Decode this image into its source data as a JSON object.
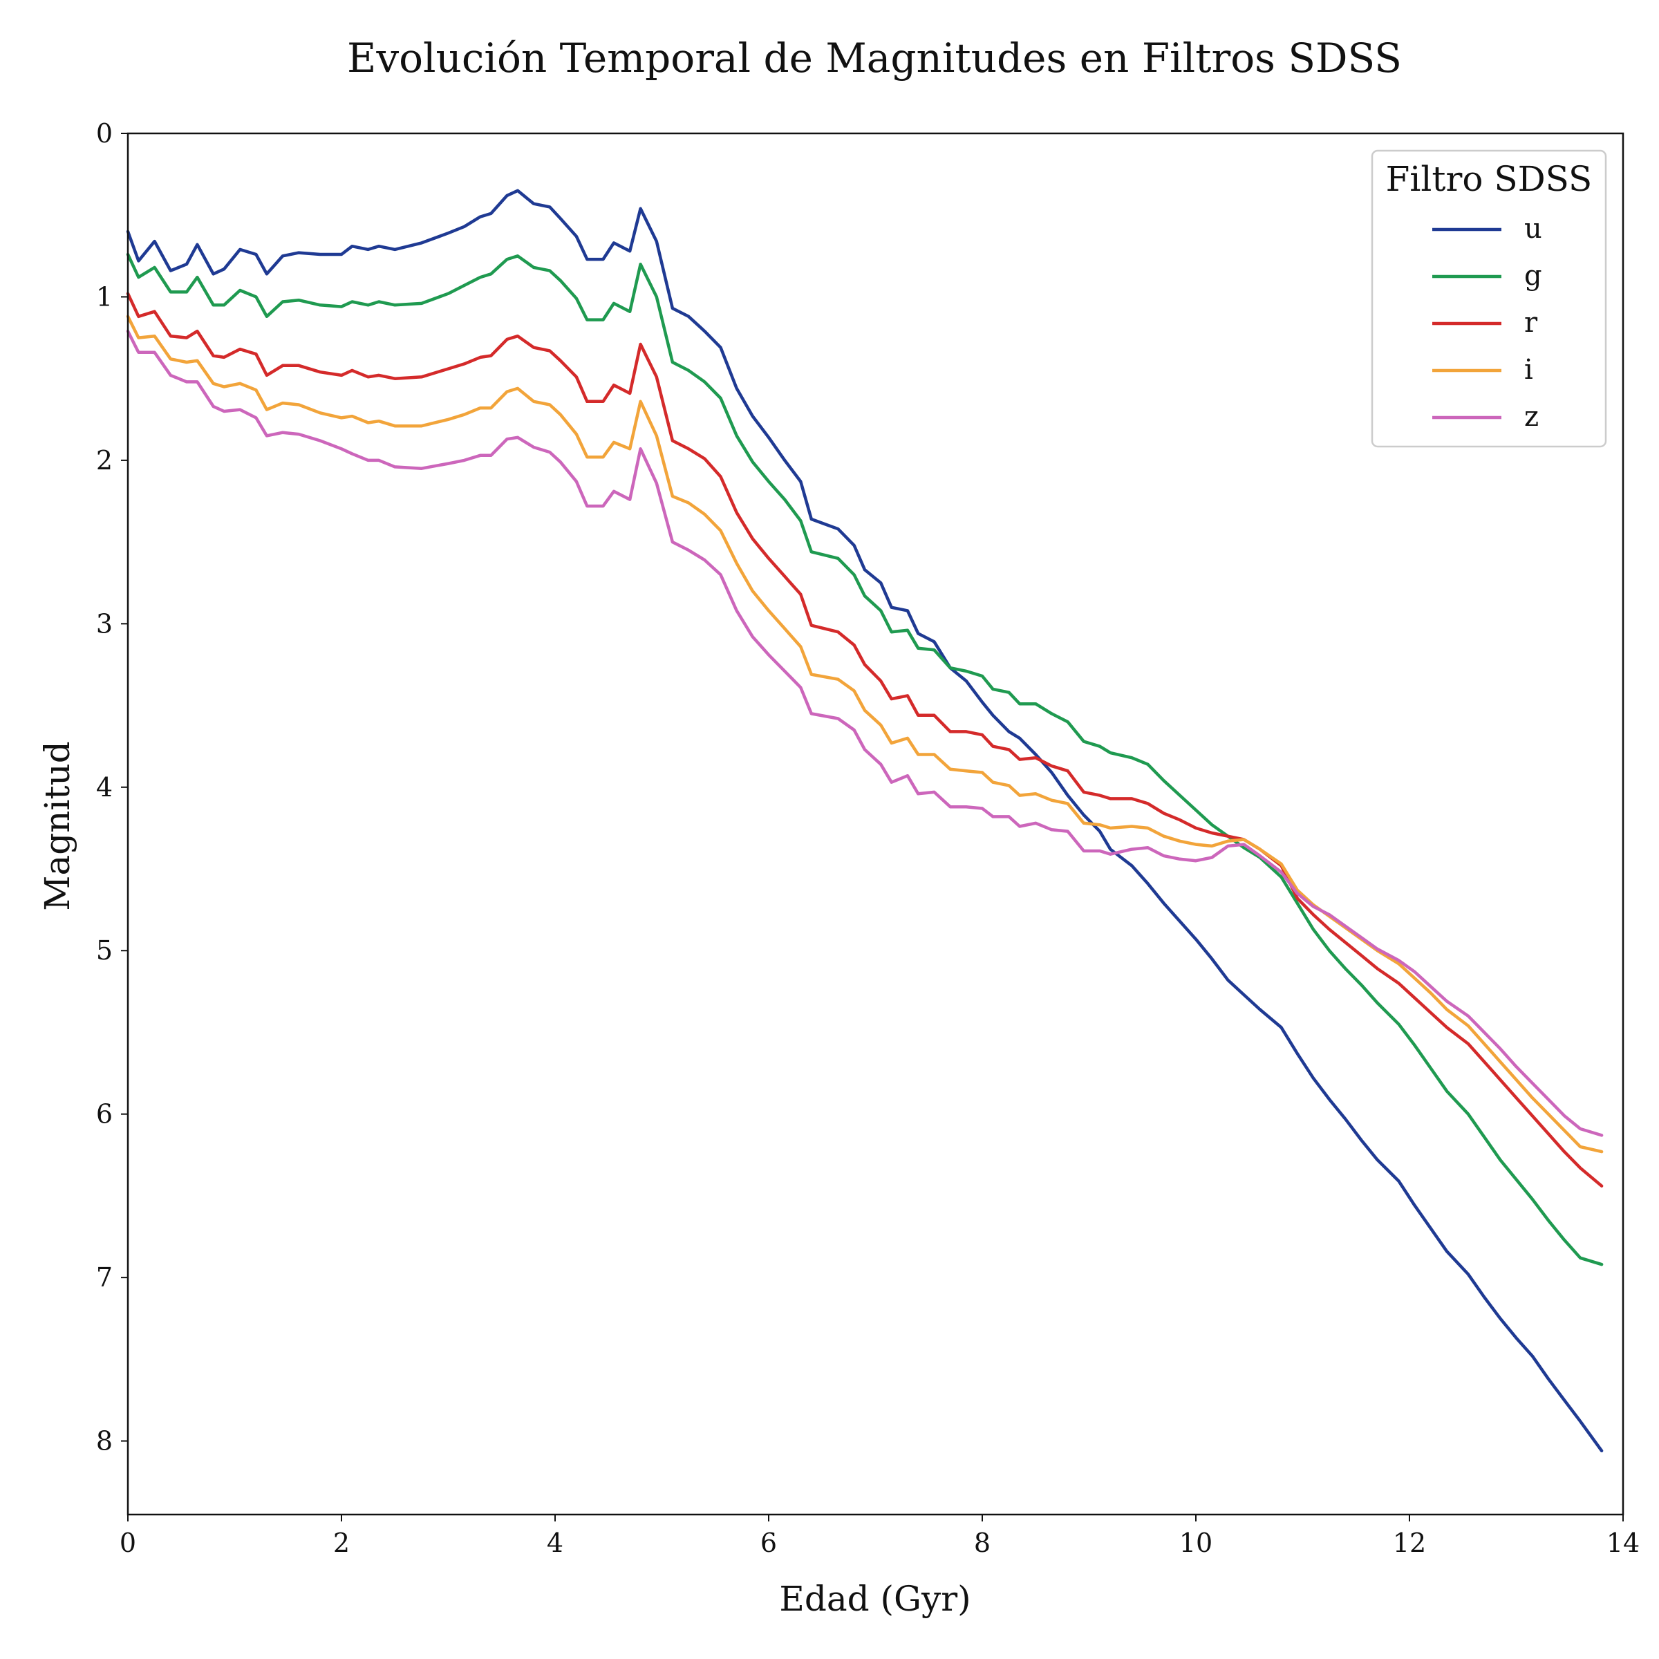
{
  "chart_data": {
    "type": "line",
    "title": "Evolución Temporal de Magnitudes en Filtros SDSS",
    "xlabel": "Edad (Gyr)",
    "ylabel": "Magnitud",
    "xlim": [
      0,
      14
    ],
    "ylim": [
      8.45,
      0
    ],
    "y_inverted": true,
    "grid": false,
    "xticks": [
      0,
      2,
      4,
      6,
      8,
      10,
      12,
      14
    ],
    "yticks": [
      0,
      1,
      2,
      3,
      4,
      5,
      6,
      7,
      8
    ],
    "legend": {
      "title": "Filtro SDSS",
      "position": "top-right"
    },
    "x": [
      0.0,
      0.1,
      0.25,
      0.4,
      0.55,
      0.65,
      0.8,
      0.9,
      1.05,
      1.2,
      1.3,
      1.45,
      1.6,
      1.8,
      2.0,
      2.1,
      2.25,
      2.35,
      2.5,
      2.75,
      3.0,
      3.15,
      3.3,
      3.4,
      3.55,
      3.65,
      3.8,
      3.95,
      4.05,
      4.2,
      4.3,
      4.45,
      4.55,
      4.7,
      4.8,
      4.95,
      5.1,
      5.25,
      5.4,
      5.55,
      5.7,
      5.85,
      6.0,
      6.15,
      6.3,
      6.4,
      6.65,
      6.8,
      6.9,
      7.05,
      7.15,
      7.3,
      7.4,
      7.55,
      7.7,
      7.85,
      8.0,
      8.1,
      8.25,
      8.35,
      8.5,
      8.65,
      8.8,
      8.95,
      9.1,
      9.2,
      9.4,
      9.55,
      9.7,
      9.85,
      10.0,
      10.15,
      10.3,
      10.45,
      10.6,
      10.8,
      10.95,
      11.1,
      11.25,
      11.4,
      11.55,
      11.7,
      11.9,
      12.05,
      12.2,
      12.35,
      12.55,
      12.7,
      12.85,
      13.0,
      13.15,
      13.3,
      13.45,
      13.6,
      13.8
    ],
    "series": [
      {
        "name": "u",
        "color": "#1f3a93",
        "values": [
          0.6,
          0.78,
          0.66,
          0.84,
          0.8,
          0.68,
          0.86,
          0.83,
          0.71,
          0.74,
          0.86,
          0.75,
          0.73,
          0.74,
          0.74,
          0.69,
          0.71,
          0.69,
          0.71,
          0.67,
          0.61,
          0.57,
          0.51,
          0.49,
          0.38,
          0.35,
          0.43,
          0.45,
          0.52,
          0.63,
          0.77,
          0.77,
          0.67,
          0.72,
          0.46,
          0.66,
          1.07,
          1.12,
          1.21,
          1.31,
          1.56,
          1.73,
          1.86,
          2.0,
          2.13,
          2.36,
          2.42,
          2.52,
          2.67,
          2.75,
          2.9,
          2.92,
          3.06,
          3.11,
          3.27,
          3.35,
          3.48,
          3.56,
          3.66,
          3.7,
          3.8,
          3.91,
          4.05,
          4.17,
          4.27,
          4.38,
          4.48,
          4.59,
          4.71,
          4.82,
          4.93,
          5.05,
          5.18,
          5.27,
          5.36,
          5.47,
          5.63,
          5.78,
          5.91,
          6.03,
          6.16,
          6.28,
          6.41,
          6.56,
          6.7,
          6.84,
          6.98,
          7.12,
          7.25,
          7.37,
          7.48,
          7.62,
          7.75,
          7.88,
          8.06
        ]
      },
      {
        "name": "g",
        "color": "#1f9a50",
        "values": [
          0.74,
          0.88,
          0.82,
          0.97,
          0.97,
          0.88,
          1.05,
          1.05,
          0.96,
          1.0,
          1.12,
          1.03,
          1.02,
          1.05,
          1.06,
          1.03,
          1.05,
          1.03,
          1.05,
          1.04,
          0.98,
          0.93,
          0.88,
          0.86,
          0.77,
          0.75,
          0.82,
          0.84,
          0.9,
          1.01,
          1.14,
          1.14,
          1.04,
          1.09,
          0.8,
          1.0,
          1.4,
          1.45,
          1.52,
          1.62,
          1.85,
          2.01,
          2.13,
          2.24,
          2.37,
          2.56,
          2.6,
          2.7,
          2.83,
          2.92,
          3.05,
          3.04,
          3.15,
          3.16,
          3.27,
          3.29,
          3.32,
          3.4,
          3.42,
          3.49,
          3.49,
          3.55,
          3.6,
          3.72,
          3.75,
          3.79,
          3.82,
          3.86,
          3.96,
          4.05,
          4.14,
          4.23,
          4.3,
          4.37,
          4.43,
          4.55,
          4.71,
          4.87,
          5.0,
          5.11,
          5.21,
          5.32,
          5.45,
          5.58,
          5.72,
          5.86,
          6.0,
          6.14,
          6.28,
          6.4,
          6.52,
          6.65,
          6.77,
          6.88,
          6.92
        ]
      },
      {
        "name": "r",
        "color": "#d42a2a",
        "values": [
          0.98,
          1.12,
          1.09,
          1.24,
          1.25,
          1.21,
          1.36,
          1.37,
          1.32,
          1.35,
          1.48,
          1.42,
          1.42,
          1.46,
          1.48,
          1.45,
          1.49,
          1.48,
          1.5,
          1.49,
          1.44,
          1.41,
          1.37,
          1.36,
          1.26,
          1.24,
          1.31,
          1.33,
          1.39,
          1.49,
          1.64,
          1.64,
          1.54,
          1.59,
          1.29,
          1.49,
          1.88,
          1.93,
          1.99,
          2.1,
          2.32,
          2.48,
          2.6,
          2.71,
          2.82,
          3.01,
          3.05,
          3.13,
          3.25,
          3.35,
          3.46,
          3.44,
          3.56,
          3.56,
          3.66,
          3.66,
          3.68,
          3.75,
          3.77,
          3.83,
          3.82,
          3.87,
          3.9,
          4.03,
          4.05,
          4.07,
          4.07,
          4.1,
          4.16,
          4.2,
          4.25,
          4.28,
          4.3,
          4.32,
          4.38,
          4.48,
          4.68,
          4.78,
          4.87,
          4.95,
          5.03,
          5.11,
          5.2,
          5.29,
          5.38,
          5.47,
          5.57,
          5.68,
          5.79,
          5.9,
          6.01,
          6.12,
          6.23,
          6.33,
          6.44
        ]
      },
      {
        "name": "i",
        "color": "#f2a43a",
        "values": [
          1.12,
          1.25,
          1.24,
          1.38,
          1.4,
          1.39,
          1.53,
          1.55,
          1.53,
          1.57,
          1.69,
          1.65,
          1.66,
          1.71,
          1.74,
          1.73,
          1.77,
          1.76,
          1.79,
          1.79,
          1.75,
          1.72,
          1.68,
          1.68,
          1.58,
          1.56,
          1.64,
          1.66,
          1.72,
          1.84,
          1.98,
          1.98,
          1.89,
          1.93,
          1.64,
          1.85,
          2.22,
          2.26,
          2.33,
          2.43,
          2.63,
          2.8,
          2.92,
          3.03,
          3.14,
          3.31,
          3.34,
          3.41,
          3.53,
          3.62,
          3.73,
          3.7,
          3.8,
          3.8,
          3.89,
          3.9,
          3.91,
          3.97,
          3.99,
          4.05,
          4.04,
          4.08,
          4.1,
          4.22,
          4.23,
          4.25,
          4.24,
          4.25,
          4.3,
          4.33,
          4.35,
          4.36,
          4.33,
          4.32,
          4.38,
          4.47,
          4.63,
          4.72,
          4.79,
          4.86,
          4.93,
          5.0,
          5.08,
          5.17,
          5.26,
          5.36,
          5.46,
          5.57,
          5.68,
          5.79,
          5.9,
          6.0,
          6.1,
          6.2,
          6.23
        ]
      },
      {
        "name": "z",
        "color": "#cc66bb",
        "values": [
          1.21,
          1.34,
          1.34,
          1.48,
          1.52,
          1.52,
          1.67,
          1.7,
          1.69,
          1.74,
          1.85,
          1.83,
          1.84,
          1.88,
          1.93,
          1.96,
          2.0,
          2.0,
          2.04,
          2.05,
          2.02,
          2.0,
          1.97,
          1.97,
          1.87,
          1.86,
          1.92,
          1.95,
          2.01,
          2.13,
          2.28,
          2.28,
          2.19,
          2.24,
          1.93,
          2.14,
          2.5,
          2.55,
          2.61,
          2.7,
          2.92,
          3.08,
          3.19,
          3.29,
          3.39,
          3.55,
          3.58,
          3.65,
          3.77,
          3.86,
          3.97,
          3.93,
          4.04,
          4.03,
          4.12,
          4.12,
          4.13,
          4.18,
          4.18,
          4.24,
          4.22,
          4.26,
          4.27,
          4.39,
          4.39,
          4.41,
          4.38,
          4.37,
          4.42,
          4.44,
          4.45,
          4.43,
          4.36,
          4.35,
          4.42,
          4.52,
          4.65,
          4.73,
          4.78,
          4.85,
          4.92,
          4.99,
          5.06,
          5.13,
          5.22,
          5.31,
          5.4,
          5.5,
          5.6,
          5.71,
          5.81,
          5.91,
          6.01,
          6.09,
          6.13
        ]
      }
    ]
  }
}
